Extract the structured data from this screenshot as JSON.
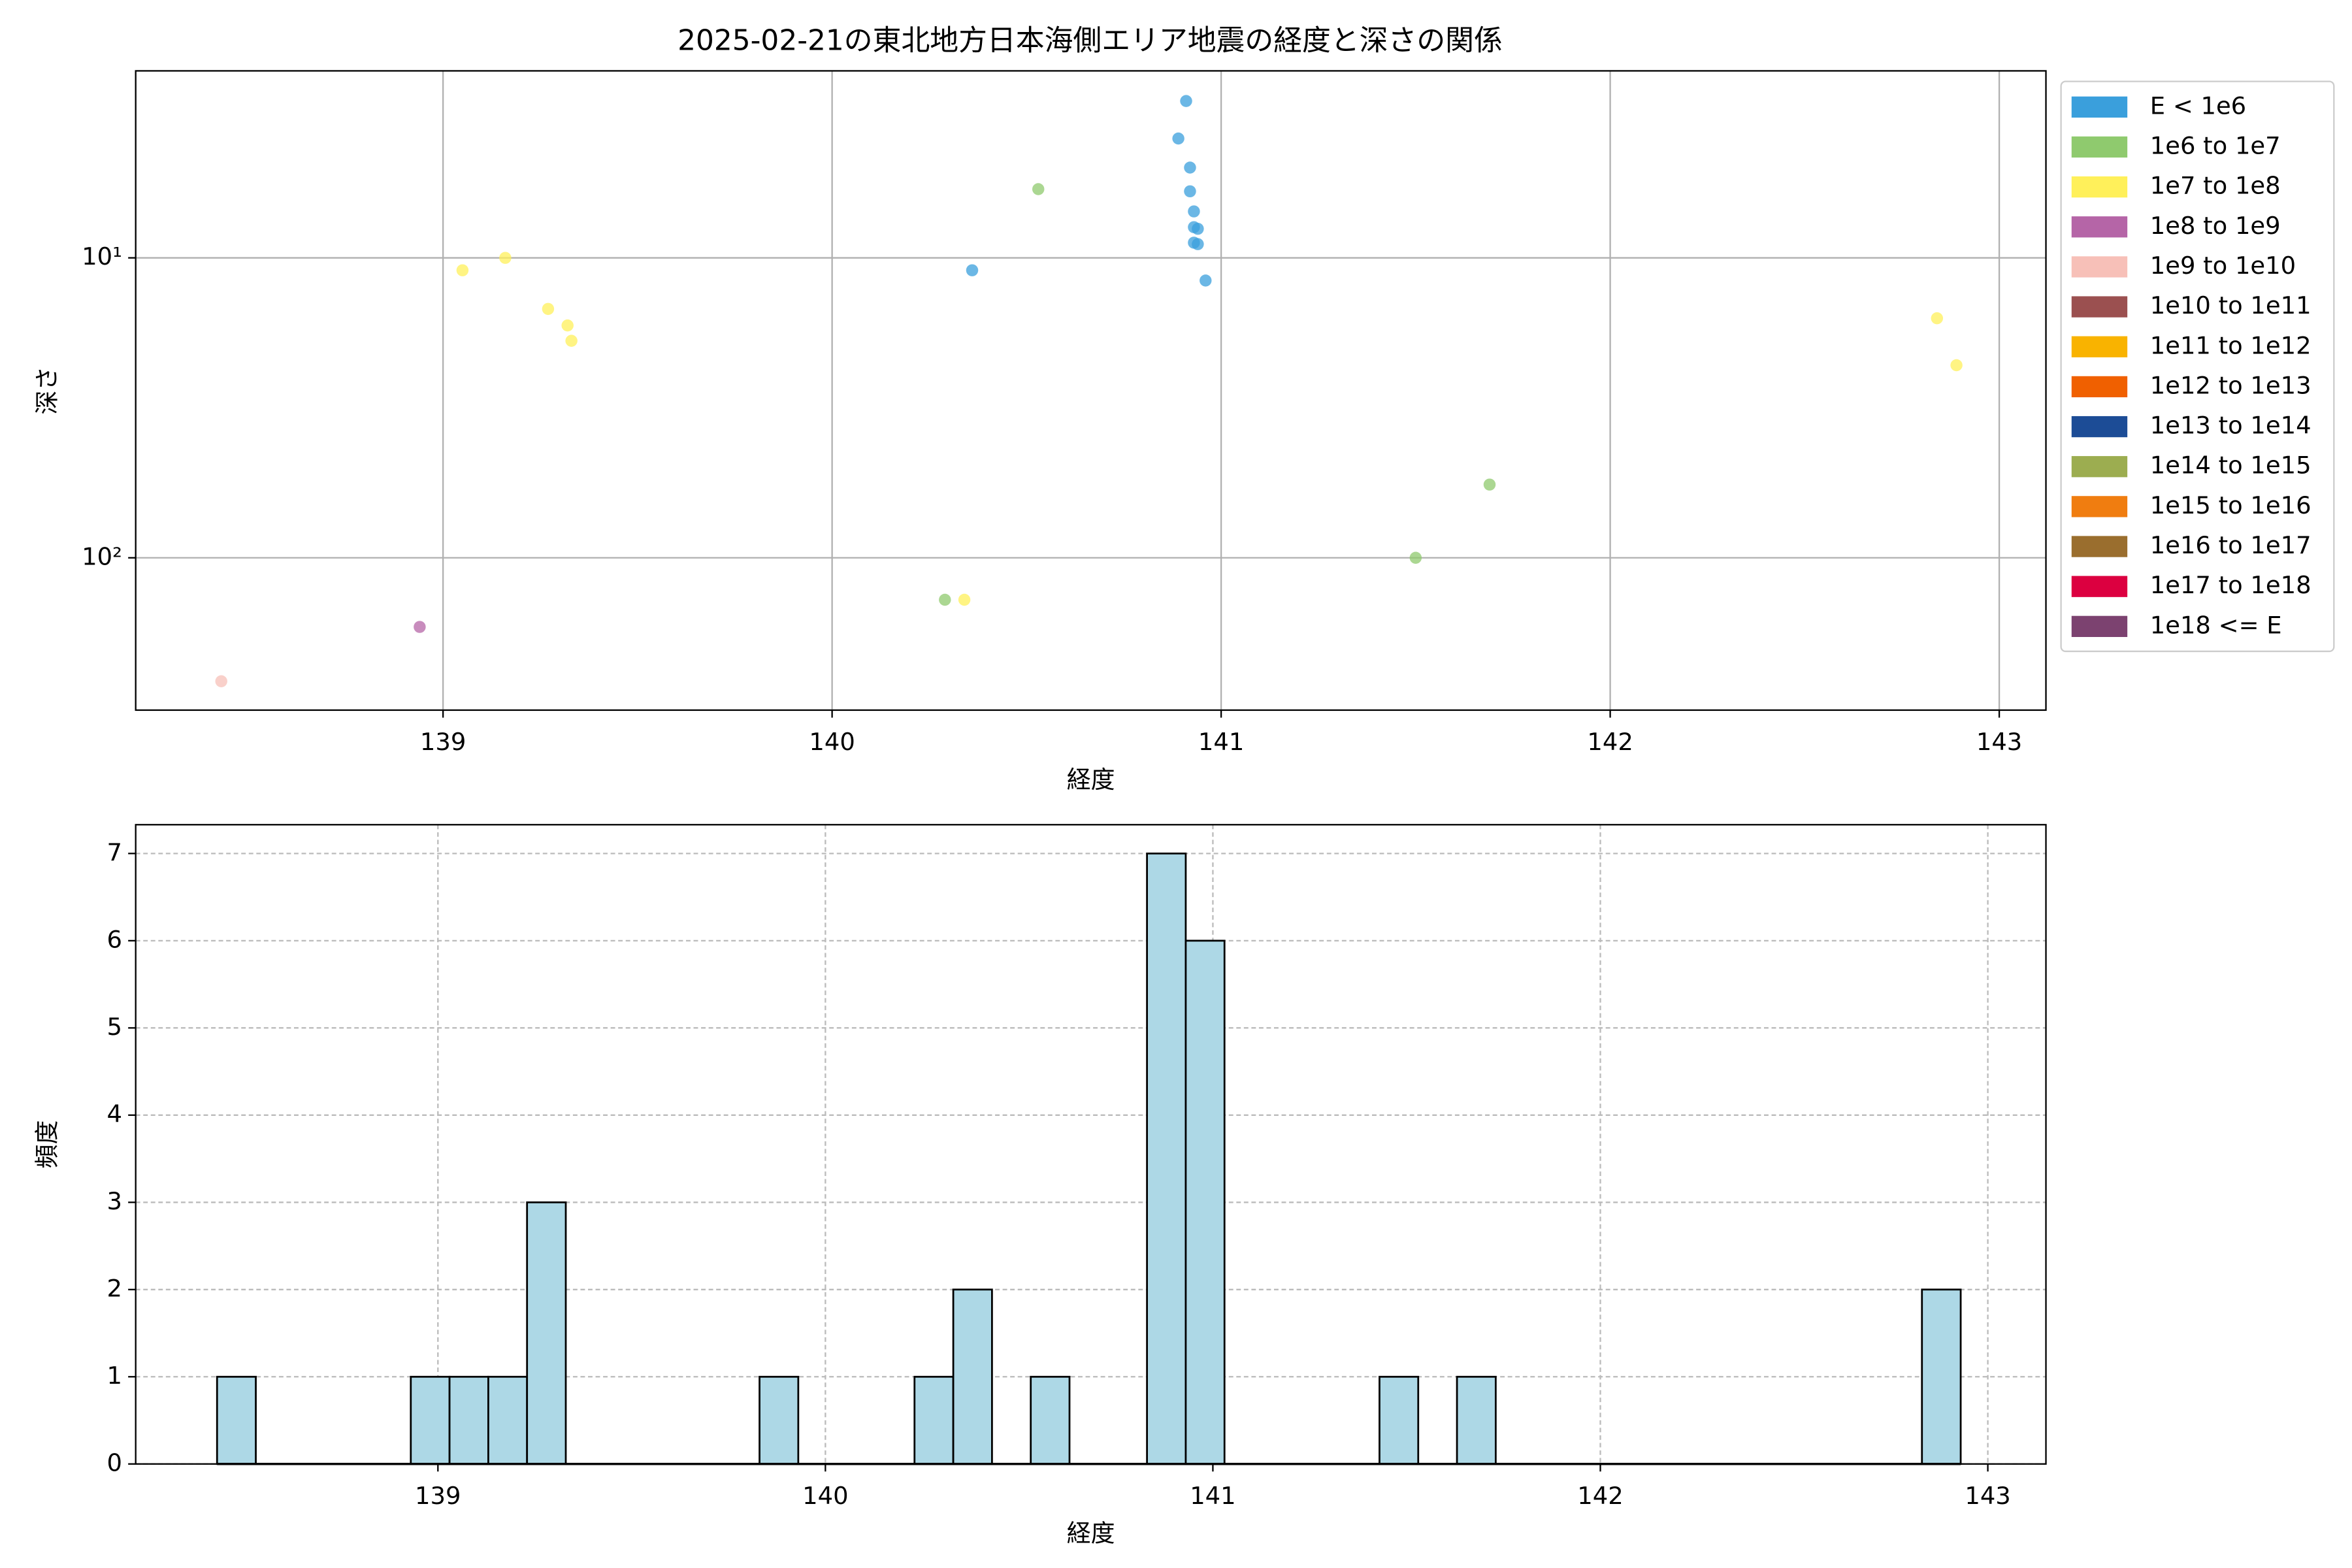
{
  "chart_data": [
    {
      "type": "scatter",
      "title": "2025-02-21の東北地方日本海側エリア地震の経度と深さの関係",
      "x_label": "経度",
      "y_label": "深さ",
      "xlim": [
        138.21,
        143.12
      ],
      "xticks": [
        139,
        140,
        141,
        142,
        143
      ],
      "ylim": [
        2.38,
        322
      ],
      "yscale": "log",
      "y_inverted": true,
      "yticks": [
        {
          "value": 10,
          "label": "10¹"
        },
        {
          "value": 100,
          "label": "10²"
        }
      ],
      "grid": true,
      "legend": "outside right",
      "series": [
        {
          "name": "E < 1e6",
          "color": "#3a9fdc",
          "x": [
            140.91,
            140.89,
            140.92,
            140.92,
            140.93,
            140.93,
            140.94,
            140.93,
            140.94,
            140.96,
            140.36
          ],
          "values": [
            3,
            4,
            5,
            6,
            7,
            7.9,
            8,
            8.9,
            9,
            11.9,
            11
          ]
        },
        {
          "name": "1e6 to 1e7",
          "color": "#8fca6e",
          "x": [
            140.53,
            140.29,
            141.5,
            141.69
          ],
          "values": [
            5.9,
            138,
            100,
            57
          ]
        },
        {
          "name": "1e7 to 1e8",
          "color": "#fff05a",
          "x": [
            139.05,
            139.16,
            139.27,
            139.32,
            139.33,
            140.34,
            142.84,
            142.89
          ],
          "values": [
            11,
            10,
            14.8,
            16.8,
            18.9,
            138,
            15.9,
            22.8
          ]
        },
        {
          "name": "1e8 to 1e9",
          "color": "#b565a7",
          "x": [
            138.94
          ],
          "values": [
            170
          ]
        },
        {
          "name": "1e9 to 1e10",
          "color": "#f7c0b8",
          "x": [
            138.43
          ],
          "values": [
            258
          ]
        },
        {
          "name": "1e10 to 1e11",
          "color": "#9b5050",
          "x": [],
          "values": []
        },
        {
          "name": "1e11 to 1e12",
          "color": "#f9b300",
          "x": [],
          "values": []
        },
        {
          "name": "1e12 to 1e13",
          "color": "#f06000",
          "x": [],
          "values": []
        },
        {
          "name": "1e13 to 1e14",
          "color": "#1c4c96",
          "x": [],
          "values": []
        },
        {
          "name": "1e14 to 1e15",
          "color": "#9cad50",
          "x": [],
          "values": []
        },
        {
          "name": "1e15 to 1e16",
          "color": "#f07d10",
          "x": [],
          "values": []
        },
        {
          "name": "1e16 to 1e17",
          "color": "#9a6e2e",
          "x": [],
          "values": []
        },
        {
          "name": "1e17 to 1e18",
          "color": "#dc0040",
          "x": [],
          "values": []
        },
        {
          "name": "1e18 <= E",
          "color": "#7c4270",
          "x": [],
          "values": []
        }
      ]
    },
    {
      "type": "histogram",
      "x_label": "経度",
      "y_label": "頻度",
      "xlim": [
        138.22,
        143.15
      ],
      "xticks": [
        139,
        140,
        141,
        142,
        143
      ],
      "ylim": [
        0,
        7.33
      ],
      "yticks": [
        0,
        1,
        2,
        3,
        4,
        5,
        6,
        7
      ],
      "grid": true,
      "color": "#add8e6",
      "bins": [
        138.43,
        138.53,
        138.63,
        138.73,
        138.83,
        138.93,
        139.03,
        139.13,
        139.23,
        139.33,
        139.43,
        139.53,
        139.63,
        139.73,
        139.83,
        139.93,
        140.03,
        140.13,
        140.23,
        140.33,
        140.43,
        140.53,
        140.63,
        140.73,
        140.83,
        140.93,
        141.03,
        141.13,
        141.23,
        141.33,
        141.43,
        141.53,
        141.63,
        141.73,
        141.83,
        141.93,
        142.03,
        142.13,
        142.23,
        142.33,
        142.43,
        142.53,
        142.63,
        142.73,
        142.83,
        142.93
      ],
      "values": [
        1,
        0,
        0,
        0,
        0,
        1,
        1,
        1,
        3,
        0,
        0,
        0,
        0,
        0,
        1,
        0,
        0,
        0,
        1,
        2,
        0,
        1,
        0,
        0,
        7,
        6,
        0,
        0,
        0,
        0,
        1,
        0,
        1,
        0,
        0,
        0,
        0,
        0,
        0,
        0,
        0,
        0,
        0,
        0,
        2
      ]
    }
  ]
}
